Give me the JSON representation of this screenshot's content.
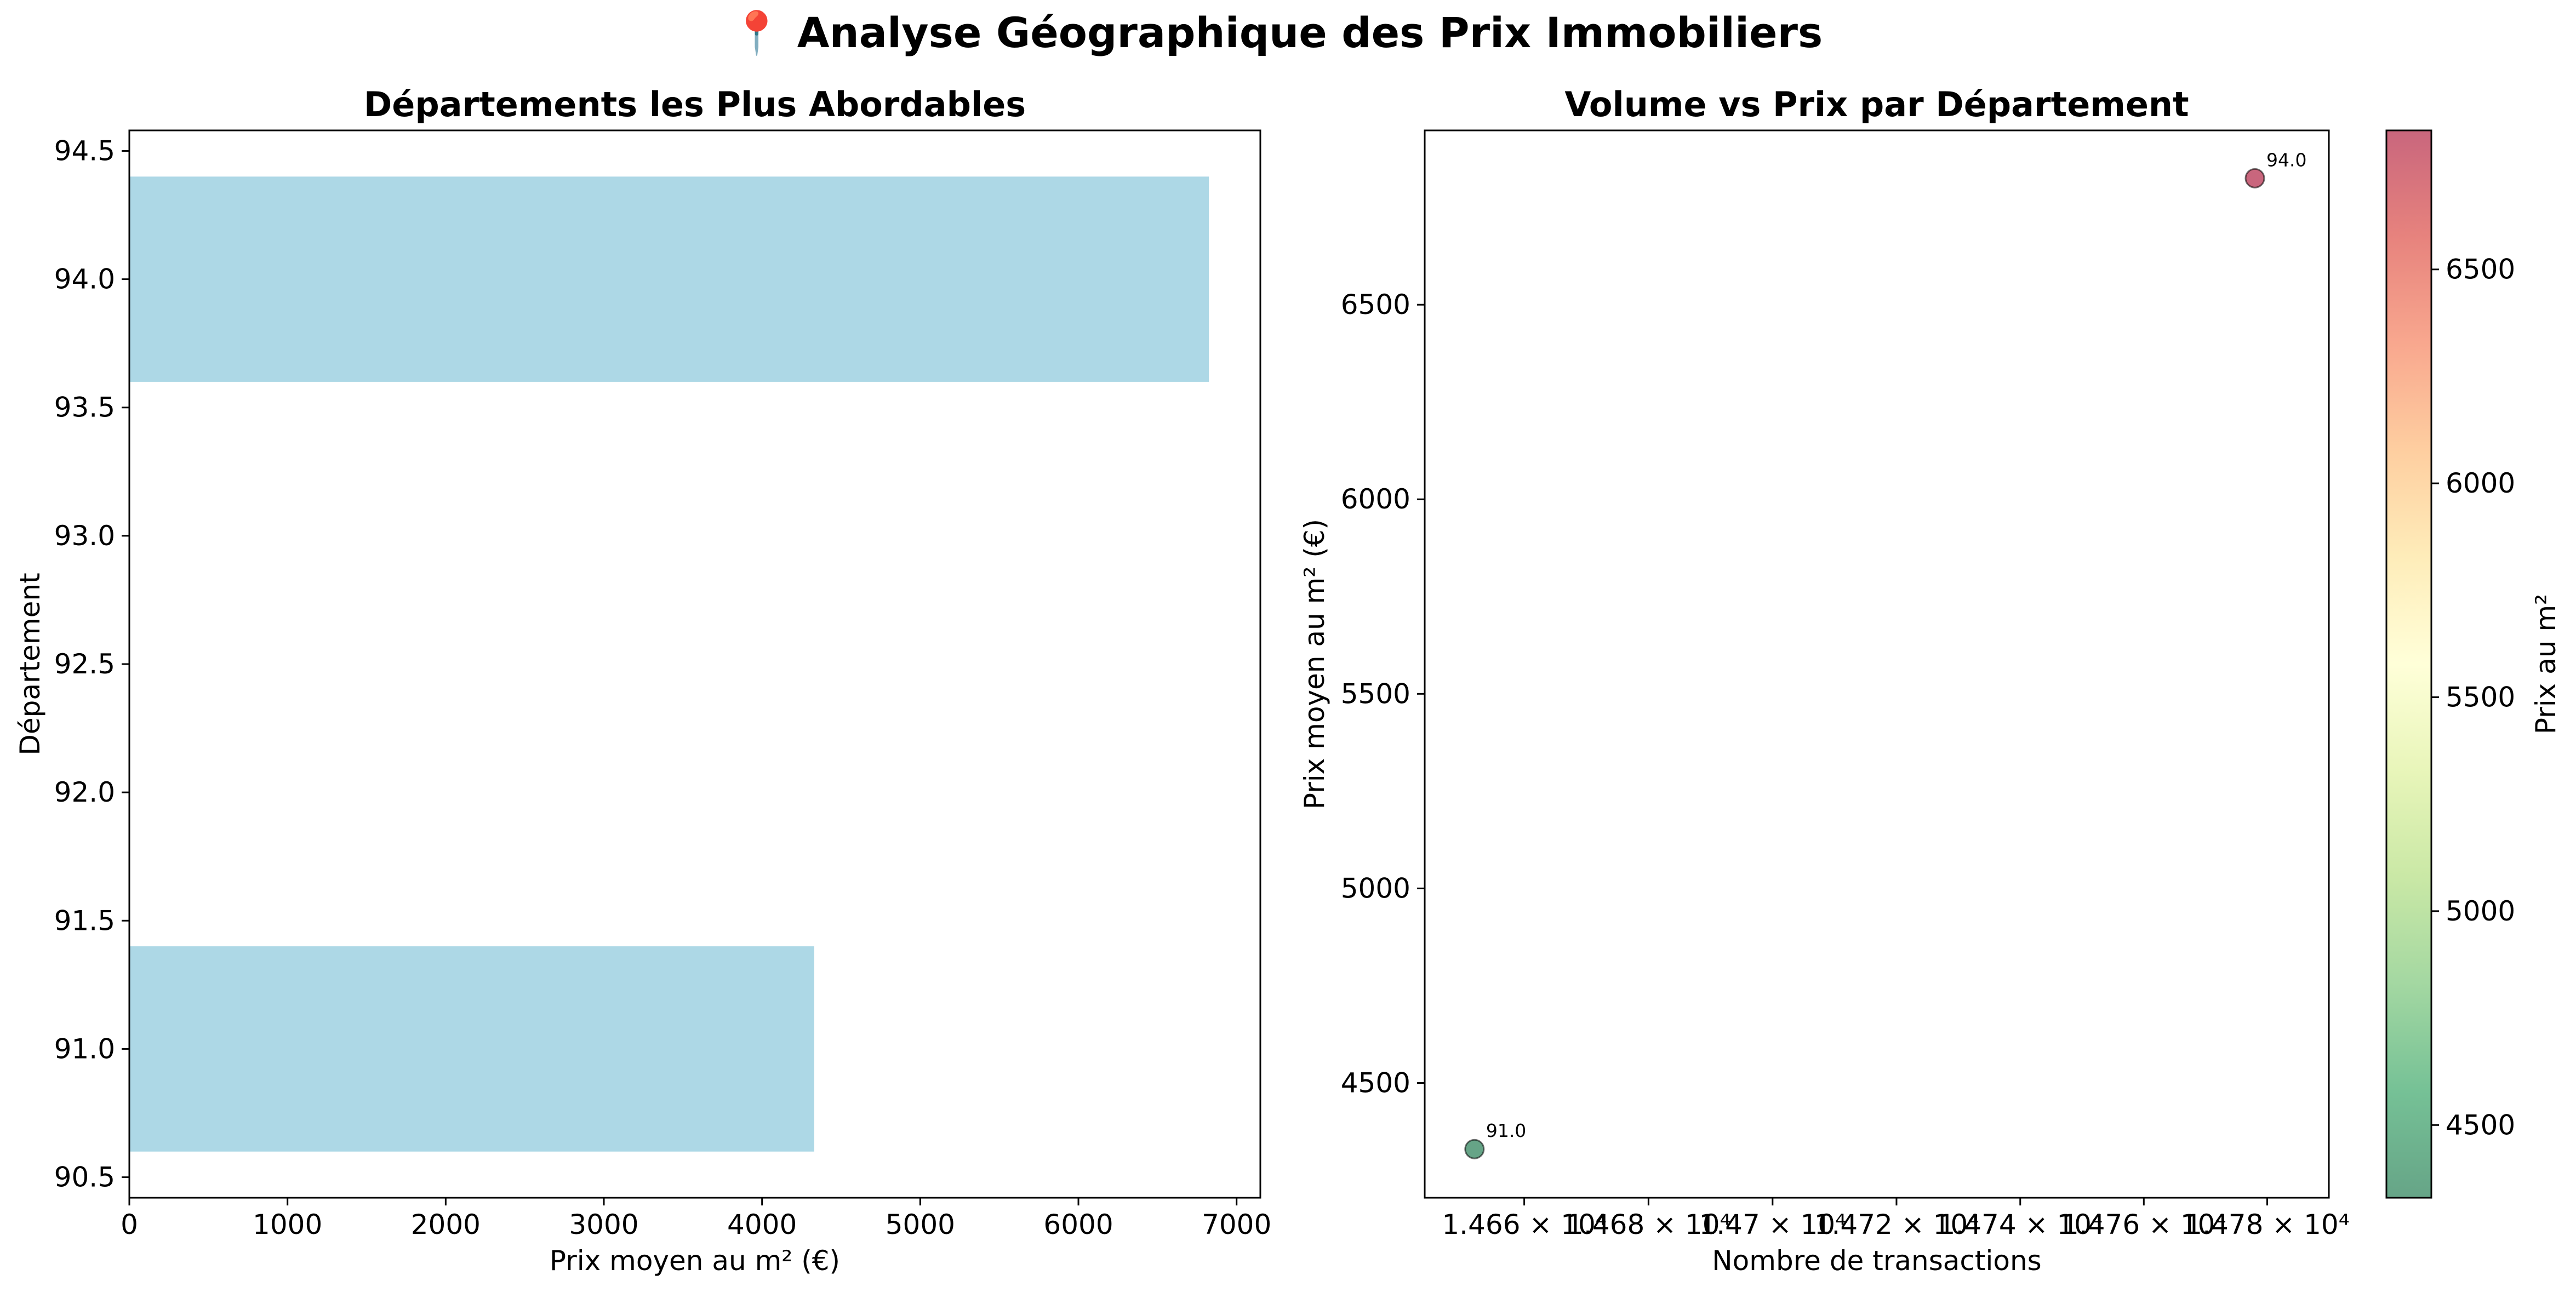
{
  "title": "📍 Analyse Géographique des Prix Immobiliers",
  "chart_data": [
    {
      "type": "bar",
      "orientation": "horizontal",
      "title": "Départements les Plus Abordables",
      "xlabel": "Prix moyen au m² (€)",
      "ylabel": "Département",
      "categories": [
        91.0,
        94.0
      ],
      "values": [
        4330,
        6825
      ],
      "bar_color": "#add8e6",
      "xlim": [
        0,
        7150
      ],
      "ylim": [
        90.42,
        94.58
      ],
      "xticks": [
        0,
        1000,
        2000,
        3000,
        4000,
        5000,
        6000,
        7000
      ],
      "yticks": [
        90.5,
        91.0,
        91.5,
        92.0,
        92.5,
        93.0,
        93.5,
        94.0,
        94.5
      ],
      "grid": false
    },
    {
      "type": "scatter",
      "title": "Volume vs Prix par Département",
      "xlabel": "Nombre de transactions",
      "ylabel": "Prix moyen au m² (€)",
      "x_scale": "log",
      "points": [
        {
          "label": "91.0",
          "x": 14652,
          "y": 4330
        },
        {
          "label": "94.0",
          "x": 14778,
          "y": 6825
        }
      ],
      "xlim": [
        14644,
        14790
      ],
      "ylim": [
        4205,
        6948
      ],
      "xticks": [
        {
          "value": 14660,
          "label": "1.466 × 10⁴"
        },
        {
          "value": 14680,
          "label": "1.468 × 10⁴"
        },
        {
          "value": 14700,
          "label": "1.47 × 10⁴"
        },
        {
          "value": 14720,
          "label": "1.472 × 10⁴"
        },
        {
          "value": 14740,
          "label": "1.474 × 10⁴"
        },
        {
          "value": 14760,
          "label": "1.476 × 10⁴"
        },
        {
          "value": 14780,
          "label": "1.478 × 10⁴"
        }
      ],
      "yticks": [
        4500,
        5000,
        5500,
        6000,
        6500
      ],
      "colormap": "RdYlGn_r",
      "colorbar": {
        "label": "Prix au m²",
        "range": [
          4330,
          6825
        ],
        "ticks": [
          4500,
          5000,
          5500,
          6000,
          6500
        ]
      },
      "grid": false
    }
  ]
}
